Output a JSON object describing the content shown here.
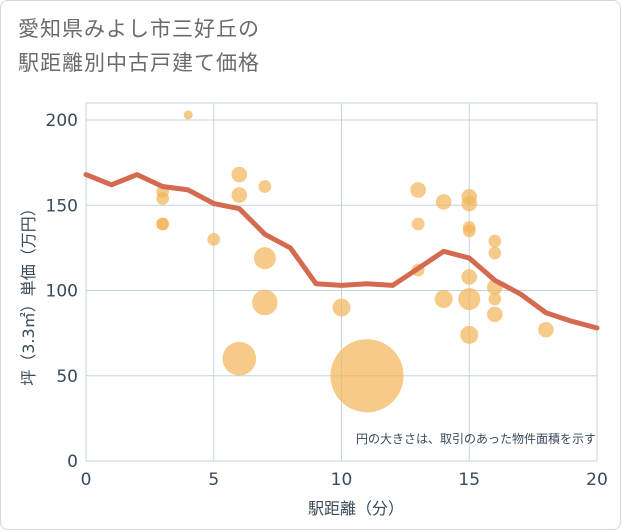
{
  "chart_data": {
    "type": "scatter",
    "title_lines": [
      "愛知県みよし市三好丘の",
      "駅距離別中古戸建て価格"
    ],
    "xlabel": "駅距離（分）",
    "ylabel": "坪（3.3㎡）単価（万円）",
    "xlim": [
      0,
      20
    ],
    "ylim": [
      0,
      210
    ],
    "x_ticks": [
      0,
      5,
      10,
      15,
      20
    ],
    "y_ticks": [
      0,
      50,
      100,
      150,
      200
    ],
    "grid": true,
    "note": "円の大きさは、取引のあった物件面積を示す",
    "colors": {
      "bubble": "#f2b65a",
      "line": "#d46a50",
      "grid": "#c5d3df"
    },
    "bubbles": [
      {
        "x": 4,
        "y": 203,
        "s": 1
      },
      {
        "x": 3,
        "y": 158,
        "s": 2
      },
      {
        "x": 3,
        "y": 154,
        "s": 2
      },
      {
        "x": 3,
        "y": 139,
        "s": 2
      },
      {
        "x": 3,
        "y": 139,
        "s": 2
      },
      {
        "x": 5,
        "y": 130,
        "s": 2
      },
      {
        "x": 6,
        "y": 168,
        "s": 3
      },
      {
        "x": 6,
        "y": 156,
        "s": 3
      },
      {
        "x": 7,
        "y": 161,
        "s": 2
      },
      {
        "x": 7,
        "y": 119,
        "s": 6
      },
      {
        "x": 7,
        "y": 93,
        "s": 8
      },
      {
        "x": 6,
        "y": 60,
        "s": 14
      },
      {
        "x": 10,
        "y": 90,
        "s": 4
      },
      {
        "x": 11,
        "y": 50,
        "s": 66
      },
      {
        "x": 13,
        "y": 159,
        "s": 3
      },
      {
        "x": 13,
        "y": 139,
        "s": 2
      },
      {
        "x": 13,
        "y": 112,
        "s": 2
      },
      {
        "x": 14,
        "y": 152,
        "s": 3
      },
      {
        "x": 14,
        "y": 95,
        "s": 4
      },
      {
        "x": 15,
        "y": 155,
        "s": 3
      },
      {
        "x": 15,
        "y": 151,
        "s": 3
      },
      {
        "x": 15,
        "y": 137,
        "s": 2
      },
      {
        "x": 15,
        "y": 135,
        "s": 2
      },
      {
        "x": 15,
        "y": 108,
        "s": 3
      },
      {
        "x": 15,
        "y": 95,
        "s": 6
      },
      {
        "x": 15,
        "y": 74,
        "s": 4
      },
      {
        "x": 16,
        "y": 129,
        "s": 2
      },
      {
        "x": 16,
        "y": 122,
        "s": 2
      },
      {
        "x": 16,
        "y": 102,
        "s": 3
      },
      {
        "x": 16,
        "y": 95,
        "s": 2
      },
      {
        "x": 16,
        "y": 86,
        "s": 3
      },
      {
        "x": 18,
        "y": 77,
        "s": 3
      }
    ],
    "series": [
      {
        "x": [
          0,
          1,
          2,
          3,
          4,
          5,
          6,
          7,
          8,
          9,
          10,
          11,
          12,
          13,
          14,
          15,
          16,
          17,
          18,
          19,
          20
        ],
        "values": [
          168,
          162,
          168,
          161,
          159,
          151,
          148,
          133,
          125,
          104,
          103,
          104,
          103,
          113,
          123,
          119,
          106,
          98,
          87,
          82,
          78
        ]
      }
    ]
  }
}
